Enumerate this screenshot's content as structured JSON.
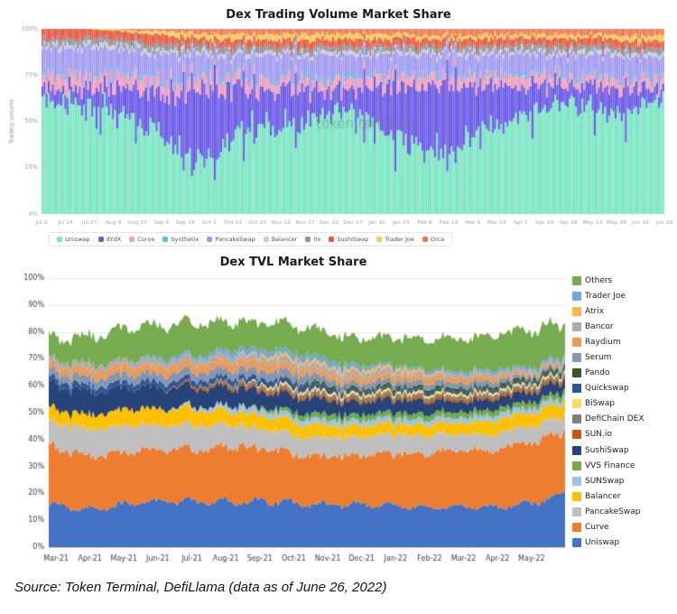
{
  "source_note": "Source: Token Terminal, DefiLlama (data as of June 26, 2022)",
  "chart_data": [
    {
      "type": "area",
      "title": "Dex Trading Volume Market Share",
      "ylabel": "Trading volume",
      "watermark": "token terminal",
      "ylim": [
        0,
        100
      ],
      "y_ticks": [
        "0%",
        "25%",
        "50%",
        "75%",
        "100%"
      ],
      "x_ticks": [
        "Jul 2",
        "Jul 14",
        "Jul 27",
        "Aug 9",
        "Aug 23",
        "Sep 6",
        "Sep 19",
        "Oct 2",
        "Oct 15",
        "Oct 29",
        "Nov 12",
        "Nov 27",
        "Dec 10",
        "Dec 27",
        "Jan 10",
        "Jan 24",
        "Feb 6",
        "Feb 19",
        "Mar 5",
        "Mar 19",
        "Apr 1",
        "Apr 14",
        "Apr 28",
        "May 13",
        "May 28",
        "Jun 12",
        "Jun 26"
      ],
      "legend_position": "bottom",
      "series": [
        {
          "name": "Uniswap",
          "color": "#7FE6C5",
          "values": [
            62,
            58,
            60,
            55,
            50,
            45,
            35,
            30,
            45,
            52,
            50,
            52,
            55,
            58,
            50,
            42,
            35,
            38,
            42,
            50,
            56,
            60,
            62,
            58,
            55,
            60,
            65
          ]
        },
        {
          "name": "dYdX",
          "color": "#6C5CE7",
          "values": [
            6,
            8,
            8,
            12,
            16,
            22,
            30,
            38,
            25,
            18,
            20,
            18,
            15,
            14,
            22,
            30,
            36,
            32,
            28,
            22,
            16,
            12,
            10,
            12,
            14,
            10,
            6
          ]
        },
        {
          "name": "Curve",
          "color": "#F2A0BB",
          "values": [
            7,
            7,
            7,
            7,
            7,
            6,
            6,
            6,
            6,
            6,
            6,
            6,
            6,
            6,
            6,
            6,
            6,
            6,
            6,
            6,
            6,
            6,
            5,
            5,
            5,
            5,
            5
          ]
        },
        {
          "name": "Synthetix",
          "color": "#63B8F0",
          "values": [
            2,
            2,
            2,
            2,
            2,
            2,
            2,
            2,
            2,
            2,
            2,
            2,
            2,
            2,
            2,
            2,
            2,
            2,
            2,
            2,
            2,
            2,
            2,
            2,
            2,
            2,
            2
          ]
        },
        {
          "name": "PancakeSwap",
          "color": "#A49BF0",
          "values": [
            13,
            14,
            13,
            13,
            13,
            13,
            12,
            11,
            11,
            12,
            12,
            12,
            12,
            11,
            10,
            10,
            9,
            10,
            10,
            10,
            10,
            10,
            10,
            11,
            11,
            11,
            10
          ]
        },
        {
          "name": "Balancer",
          "color": "#C9CDD4",
          "values": [
            2,
            2,
            2,
            2,
            2,
            2,
            2,
            2,
            2,
            2,
            2,
            2,
            2,
            2,
            2,
            2,
            2,
            2,
            2,
            2,
            2,
            2,
            2,
            2,
            2,
            2,
            2
          ]
        },
        {
          "name": "0x",
          "color": "#8F959E",
          "values": [
            3,
            3,
            3,
            3,
            3,
            3,
            3,
            3,
            3,
            3,
            3,
            3,
            3,
            3,
            3,
            3,
            3,
            3,
            3,
            3,
            3,
            3,
            3,
            3,
            3,
            3,
            3
          ]
        },
        {
          "name": "SushiSwap",
          "color": "#E85C41",
          "values": [
            5,
            5,
            5,
            5,
            5,
            5,
            4,
            4,
            4,
            4,
            4,
            4,
            4,
            4,
            4,
            4,
            4,
            4,
            4,
            4,
            4,
            4,
            4,
            4,
            4,
            4,
            4
          ]
        },
        {
          "name": "Trader Joe",
          "color": "#F5CB5C",
          "values": [
            0,
            0,
            0,
            1,
            1,
            2,
            3,
            3,
            3,
            3,
            3,
            3,
            3,
            3,
            3,
            2,
            2,
            2,
            2,
            2,
            2,
            2,
            2,
            2,
            2,
            3,
            3
          ]
        },
        {
          "name": "Orca",
          "color": "#EF7A56",
          "values": [
            0,
            0,
            0,
            0,
            1,
            1,
            2,
            3,
            3,
            3,
            3,
            3,
            3,
            3,
            3,
            3,
            4,
            4,
            4,
            3,
            3,
            3,
            3,
            3,
            3,
            4,
            4
          ]
        }
      ]
    },
    {
      "type": "area",
      "title": "Dex TVL Market Share",
      "ylim": [
        0,
        100
      ],
      "y_ticks": [
        "0%",
        "10%",
        "20%",
        "30%",
        "40%",
        "50%",
        "60%",
        "70%",
        "80%",
        "90%",
        "100%"
      ],
      "x_ticks": [
        "Mar-21",
        "Apr-21",
        "May-21",
        "Jun-21",
        "Jul-21",
        "Aug-21",
        "Sep-21",
        "Oct-21",
        "Nov-21",
        "Dec-21",
        "Jan-22",
        "Feb-22",
        "Mar-22",
        "Apr-22",
        "May-22"
      ],
      "legend_position": "right",
      "series": [
        {
          "name": "Uniswap",
          "color": "#4472C4",
          "values": [
            16,
            14,
            16,
            17,
            17,
            17,
            17,
            16,
            16,
            16,
            15,
            15,
            15,
            16,
            20
          ]
        },
        {
          "name": "Curve",
          "color": "#ED7D31",
          "values": [
            22,
            20,
            19,
            19,
            19,
            21,
            19,
            18,
            18,
            19,
            20,
            21,
            21,
            23,
            23
          ]
        },
        {
          "name": "PancakeSwap",
          "color": "#BFBFBF",
          "values": [
            9,
            10,
            10,
            9,
            9,
            8,
            7,
            7,
            7,
            7,
            7,
            6,
            6,
            6,
            6
          ]
        },
        {
          "name": "Balancer",
          "color": "#FFC000",
          "values": [
            5,
            5,
            6,
            6,
            6,
            5,
            5,
            5,
            4,
            4,
            4,
            4,
            5,
            5,
            5
          ]
        },
        {
          "name": "SUNSwap",
          "color": "#9DC3E6",
          "values": [
            0,
            0,
            0,
            0,
            1,
            2,
            2,
            2,
            2,
            2,
            2,
            2,
            2,
            2,
            2
          ]
        },
        {
          "name": "VVS Finance",
          "color": "#70AD47",
          "values": [
            0,
            0,
            0,
            0,
            0,
            0,
            1,
            2,
            2,
            2,
            2,
            2,
            2,
            2,
            2
          ]
        },
        {
          "name": "SushiSwap",
          "color": "#264478",
          "values": [
            9,
            9,
            8,
            8,
            7,
            7,
            6,
            6,
            5,
            5,
            5,
            4,
            4,
            4,
            4
          ]
        },
        {
          "name": "SUN.io",
          "color": "#C55A11",
          "values": [
            0,
            0,
            0,
            0,
            1,
            1,
            1,
            1,
            1,
            1,
            1,
            1,
            1,
            1,
            1
          ]
        },
        {
          "name": "DefiChain DEX",
          "color": "#7F7F7F",
          "values": [
            0,
            0,
            0,
            0,
            0,
            1,
            1,
            1,
            1,
            1,
            1,
            1,
            1,
            1,
            1
          ]
        },
        {
          "name": "BiSwap",
          "color": "#FFD966",
          "values": [
            0,
            0,
            0,
            0,
            0,
            0,
            1,
            1,
            1,
            1,
            1,
            1,
            1,
            1,
            1
          ]
        },
        {
          "name": "Quickswap",
          "color": "#2E5597",
          "values": [
            2,
            2,
            2,
            2,
            2,
            2,
            2,
            2,
            1,
            1,
            1,
            1,
            1,
            1,
            1
          ]
        },
        {
          "name": "Pando",
          "color": "#375623",
          "values": [
            0,
            0,
            0,
            0,
            0,
            0,
            0,
            1,
            1,
            1,
            1,
            1,
            1,
            1,
            1
          ]
        },
        {
          "name": "Serum",
          "color": "#8496B0",
          "values": [
            3,
            3,
            3,
            3,
            3,
            3,
            3,
            3,
            2,
            2,
            2,
            2,
            2,
            1,
            1
          ]
        },
        {
          "name": "Raydium",
          "color": "#ED9A56",
          "values": [
            2,
            3,
            3,
            3,
            3,
            3,
            3,
            2,
            2,
            2,
            2,
            2,
            2,
            1,
            1
          ]
        },
        {
          "name": "Bancor",
          "color": "#AFABAB",
          "values": [
            2,
            2,
            2,
            2,
            2,
            2,
            2,
            2,
            2,
            2,
            1,
            1,
            1,
            1,
            1
          ]
        },
        {
          "name": "Atrix",
          "color": "#FFB547",
          "values": [
            0,
            0,
            0,
            0,
            0,
            0,
            1,
            1,
            1,
            1,
            1,
            0,
            0,
            0,
            0
          ]
        },
        {
          "name": "Trader Joe",
          "color": "#6FA8DC",
          "values": [
            0,
            0,
            0,
            1,
            1,
            2,
            2,
            2,
            2,
            1,
            1,
            1,
            1,
            1,
            1
          ]
        },
        {
          "name": "Others",
          "color": "#76AB4F",
          "values": [
            8,
            10,
            12,
            12,
            12,
            10,
            10,
            10,
            10,
            10,
            11,
            12,
            13,
            14,
            12
          ]
        }
      ]
    }
  ]
}
